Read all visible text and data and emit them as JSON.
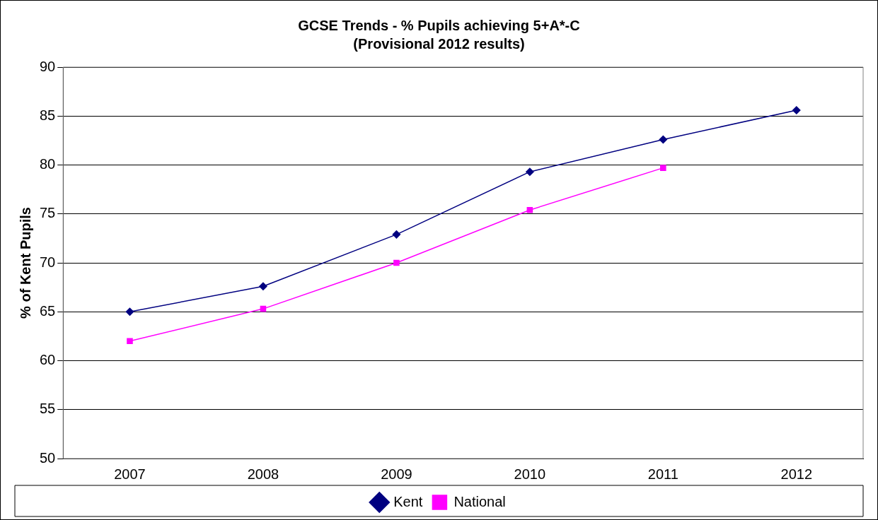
{
  "chart_data": {
    "type": "line",
    "title": "GCSE Trends - % Pupils achieving 5+A*-C",
    "subtitle": "(Provisional 2012 results)",
    "ylabel": "% of Kent Pupils",
    "categories": [
      "2007",
      "2008",
      "2009",
      "2010",
      "2011",
      "2012"
    ],
    "series": [
      {
        "name": "Kent",
        "color": "#000080",
        "marker": "diamond",
        "values": [
          65.0,
          67.6,
          72.9,
          79.3,
          82.6,
          85.6
        ]
      },
      {
        "name": "National",
        "color": "#ff00ff",
        "marker": "square",
        "values": [
          62.0,
          65.3,
          70.0,
          75.4,
          79.7,
          null
        ]
      }
    ],
    "ylim": [
      50,
      90
    ],
    "yticks": [
      50,
      55,
      60,
      65,
      70,
      75,
      80,
      85,
      90
    ],
    "grid": "y",
    "legend": "bottom"
  }
}
